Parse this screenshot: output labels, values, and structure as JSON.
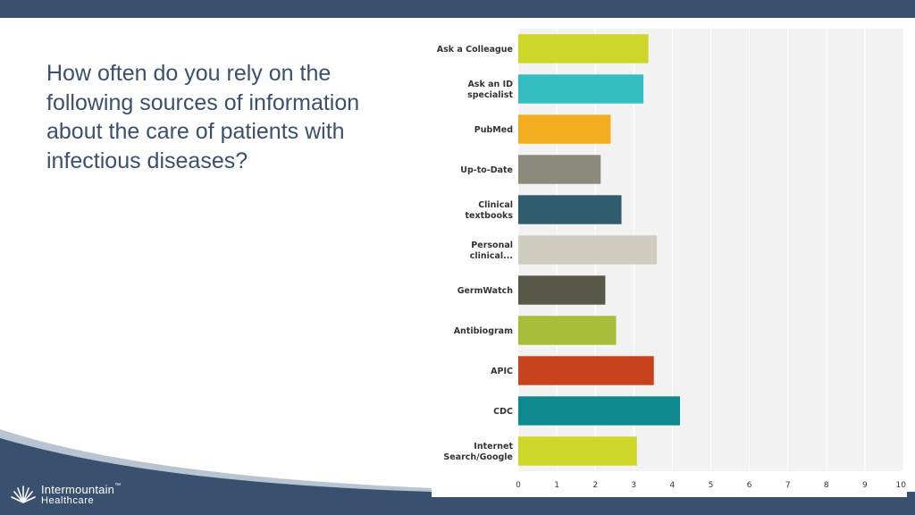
{
  "slide": {
    "question": "How often do you rely on the following sources of information about the care of patients with infectious diseases?",
    "logo_line1": "Intermountain",
    "logo_line2": "Healthcare",
    "logo_mark": "™",
    "colors": {
      "navy": "#3a506f",
      "plot_bg": "#f2f2f2"
    }
  },
  "chart_data": {
    "type": "bar",
    "orientation": "horizontal",
    "categories": [
      [
        "Ask a Colleague"
      ],
      [
        "Ask an ID",
        "specialist"
      ],
      [
        "PubMed"
      ],
      [
        "Up-to-Date"
      ],
      [
        "Clinical",
        "textbooks"
      ],
      [
        "Personal",
        "clinical..."
      ],
      [
        "GermWatch"
      ],
      [
        "Antibiogram"
      ],
      [
        "APIC"
      ],
      [
        "CDC"
      ],
      [
        "Internet",
        "Search/Google"
      ]
    ],
    "values": [
      3.38,
      3.25,
      2.4,
      2.14,
      2.68,
      3.6,
      2.26,
      2.54,
      3.52,
      4.2,
      3.08
    ],
    "colors": [
      "#cdd629",
      "#34bec2",
      "#f2ae1f",
      "#8a8b7c",
      "#2f5d6e",
      "#cfcdc0",
      "#585849",
      "#a8bd3a",
      "#c8431d",
      "#0e8a8e",
      "#cdd629"
    ],
    "xlim": [
      0,
      10
    ],
    "xticks": [
      "0",
      "1",
      "2",
      "3",
      "4",
      "5",
      "6",
      "7",
      "8",
      "9",
      "10"
    ],
    "grid": true
  }
}
